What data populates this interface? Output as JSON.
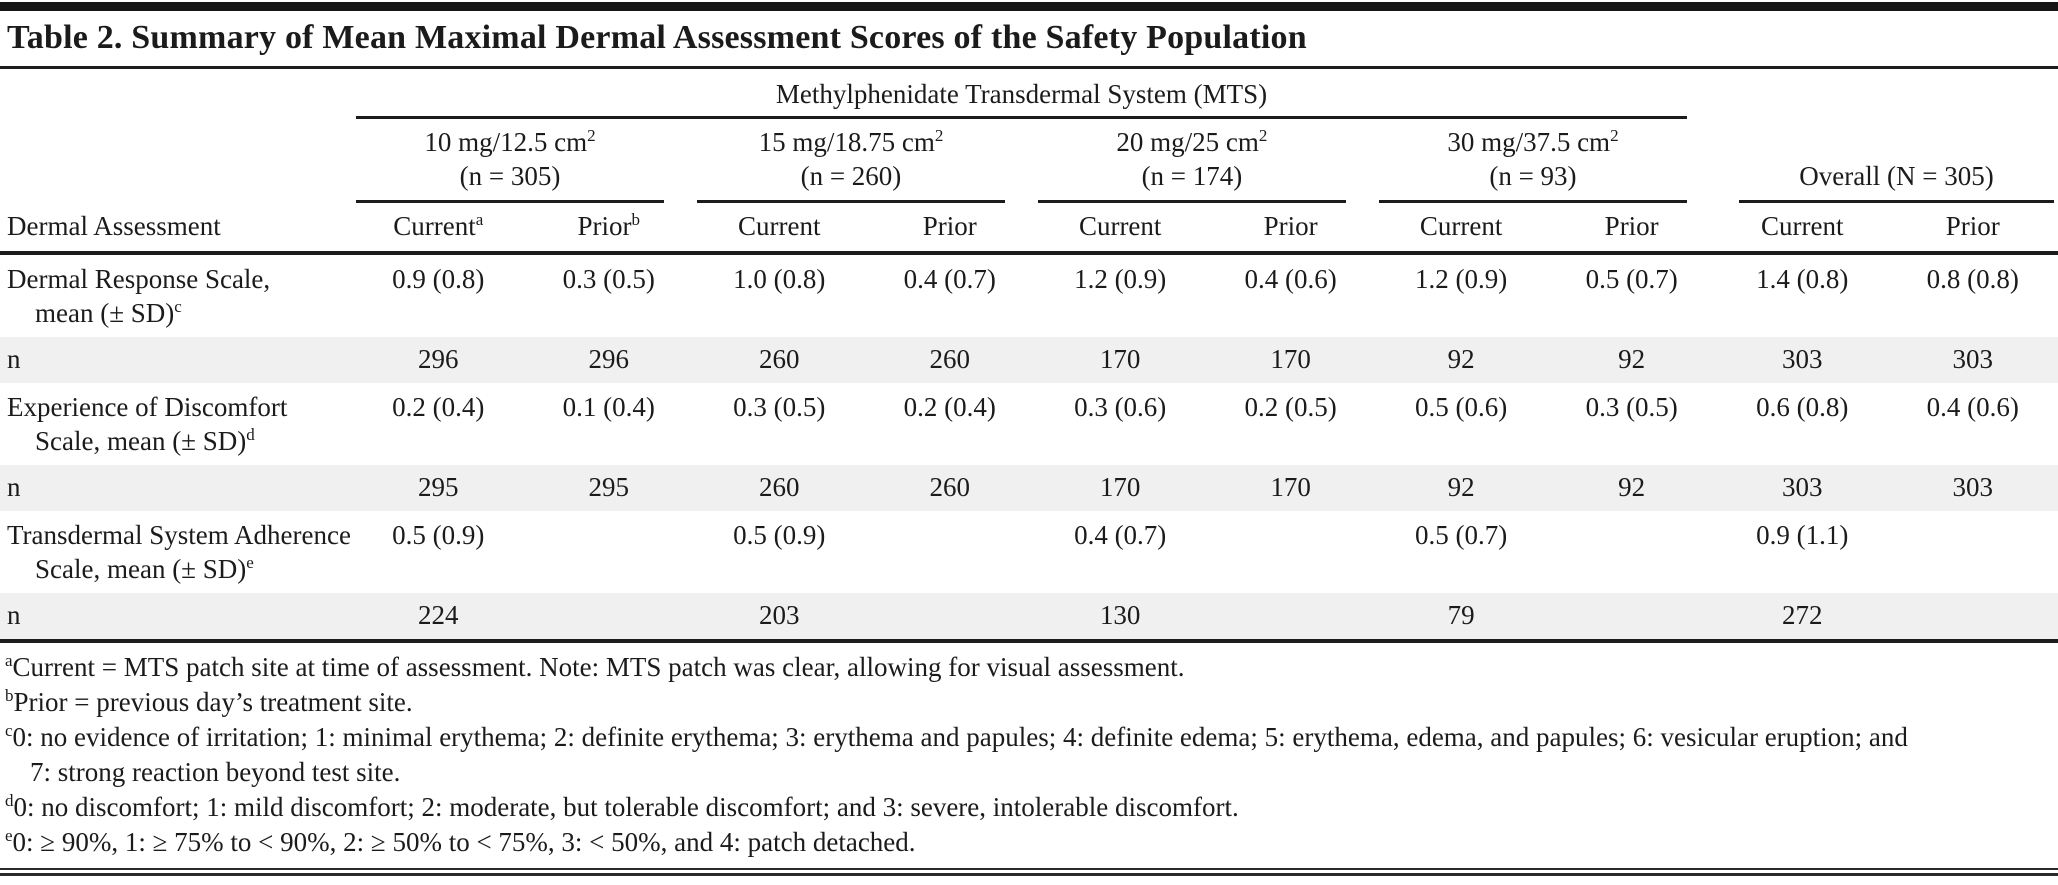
{
  "title": "Table 2. Summary of Mean Maximal Dermal Assessment Scores of the Safety Population",
  "header": {
    "stub_label": "Dermal Assessment",
    "mts_label": "Methylphenidate Transdermal System (MTS)",
    "groups": [
      {
        "dose": "10 mg/12.5 cm",
        "dose_sup": "2",
        "enrolled": "(n = 305)",
        "col1": "Current",
        "col1_sup": "a",
        "col2": "Prior",
        "col2_sup": "b"
      },
      {
        "dose": "15 mg/18.75 cm",
        "dose_sup": "2",
        "enrolled": "(n = 260)",
        "col1": "Current",
        "col1_sup": "",
        "col2": "Prior",
        "col2_sup": ""
      },
      {
        "dose": "20 mg/25 cm",
        "dose_sup": "2",
        "enrolled": "(n = 174)",
        "col1": "Current",
        "col1_sup": "",
        "col2": "Prior",
        "col2_sup": ""
      },
      {
        "dose": "30 mg/37.5 cm",
        "dose_sup": "2",
        "enrolled": "(n = 93)",
        "col1": "Current",
        "col1_sup": "",
        "col2": "Prior",
        "col2_sup": ""
      }
    ],
    "overall": {
      "label": "Overall (N = 305)",
      "col1": "Current",
      "col2": "Prior"
    }
  },
  "rows": [
    {
      "label1": "Dermal Response Scale,",
      "label2": "mean (± SD)",
      "label_sup": "c",
      "v": [
        "0.9 (0.8)",
        "0.3 (0.5)",
        "1.0 (0.8)",
        "0.4 (0.7)",
        "1.2 (0.9)",
        "0.4 (0.6)",
        "1.2 (0.9)",
        "0.5 (0.7)",
        "1.4 (0.8)",
        "0.8 (0.8)"
      ]
    },
    {
      "label1": "n",
      "v": [
        "296",
        "296",
        "260",
        "260",
        "170",
        "170",
        "92",
        "92",
        "303",
        "303"
      ]
    },
    {
      "label1": "Experience of Discomfort",
      "label2": "Scale, mean (± SD)",
      "label_sup": "d",
      "v": [
        "0.2 (0.4)",
        "0.1 (0.4)",
        "0.3 (0.5)",
        "0.2 (0.4)",
        "0.3 (0.6)",
        "0.2 (0.5)",
        "0.5 (0.6)",
        "0.3 (0.5)",
        "0.6 (0.8)",
        "0.4 (0.6)"
      ]
    },
    {
      "label1": "n",
      "v": [
        "295",
        "295",
        "260",
        "260",
        "170",
        "170",
        "92",
        "92",
        "303",
        "303"
      ]
    },
    {
      "label1": "Transdermal System Adherence",
      "label2": "Scale, mean (± SD)",
      "label_sup": "e",
      "v": [
        "0.5 (0.9)",
        "",
        "0.5 (0.9)",
        "",
        "0.4 (0.7)",
        "",
        "0.5 (0.7)",
        "",
        "0.9 (1.1)",
        ""
      ]
    },
    {
      "label1": "n",
      "v": [
        "224",
        "",
        "203",
        "",
        "130",
        "",
        "79",
        "",
        "272",
        ""
      ]
    }
  ],
  "footnotes": [
    {
      "marker": "a",
      "text": "Current = MTS patch site at time of assessment. Note: MTS patch was clear, allowing for visual assessment."
    },
    {
      "marker": "b",
      "text": "Prior = previous day’s treatment site."
    },
    {
      "marker": "c",
      "text": "0: no evidence of irritation; 1: minimal erythema; 2: definite erythema; 3: erythema and papules; 4: definite edema; 5: erythema, edema, and papules; 6: vesicular eruption; and 7: strong reaction beyond test site."
    },
    {
      "marker": "d",
      "text": "0: no discomfort; 1: mild discomfort; 2: moderate, but tolerable discomfort; and 3: severe, intolerable discomfort."
    },
    {
      "marker": "e",
      "text": "0: ≥ 90%, 1: ≥ 75% to < 90%, 2: ≥ 50% to < 75%, 3: < 50%, and 4: patch detached."
    }
  ],
  "colors": {
    "stripe": "#f0f0f0",
    "rule": "#1c1c1c",
    "text": "#1b1b1b"
  }
}
